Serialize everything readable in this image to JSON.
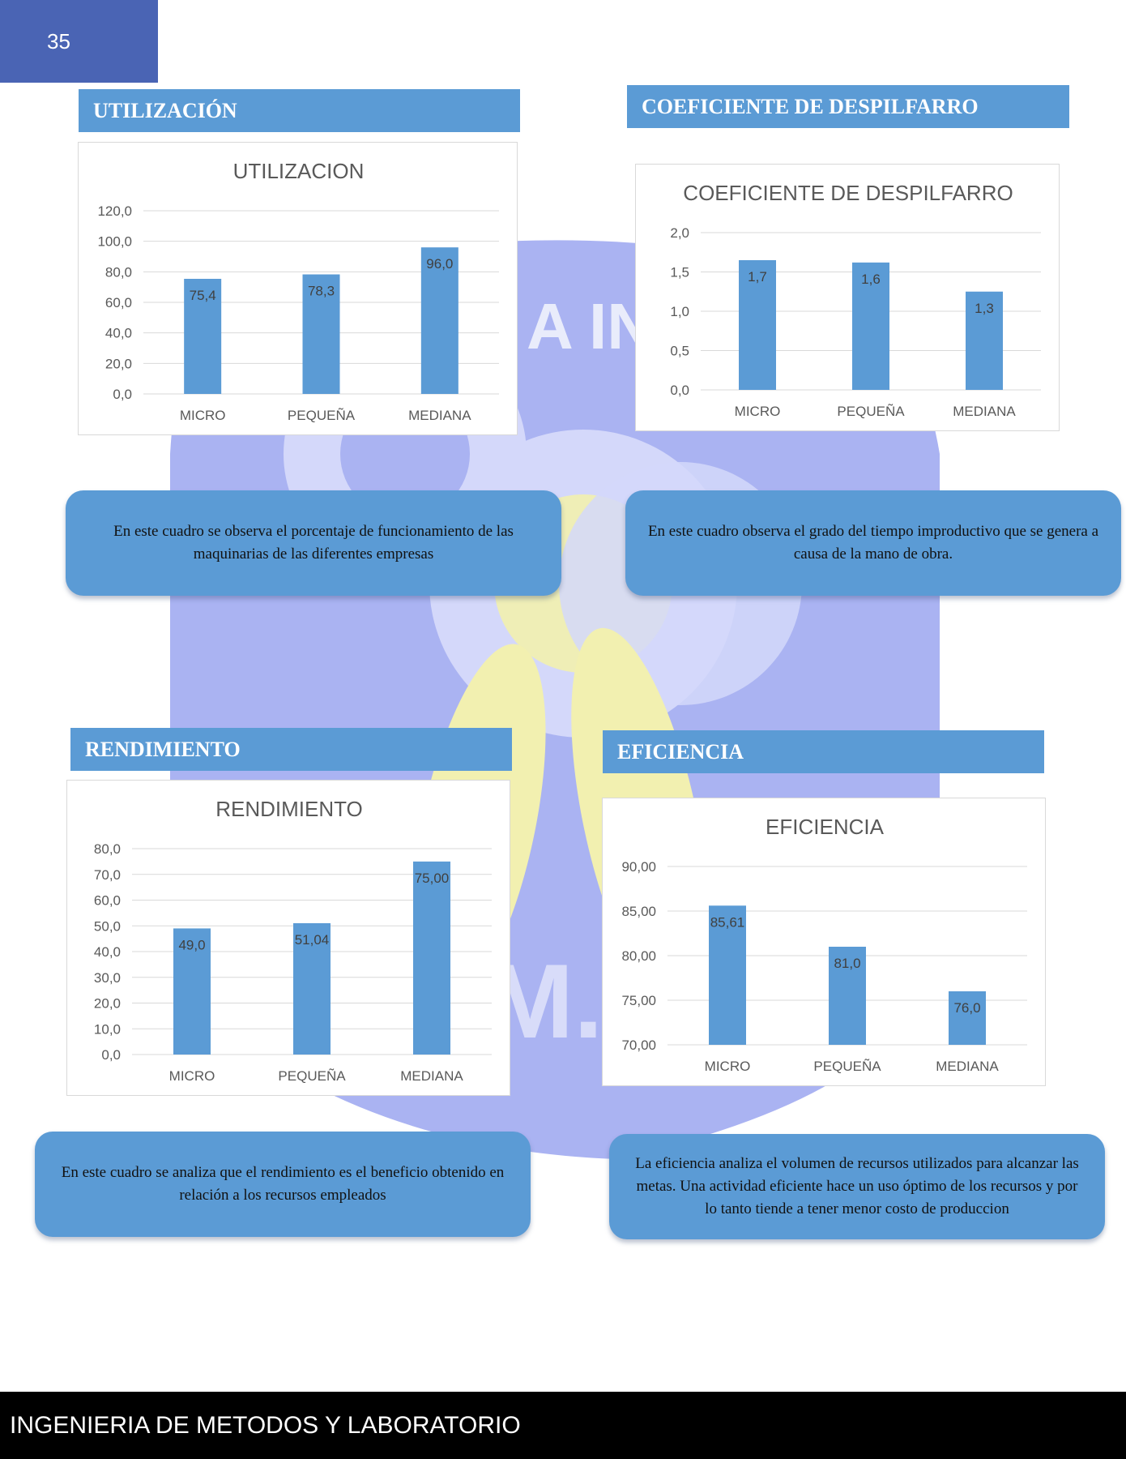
{
  "page_number": "35",
  "footer": {
    "text": "INGENIERIA DE METODOS Y LABORATORIO"
  },
  "watermark": {
    "text_fragment_1": "A IN",
    "text_fragment_2": "M.S"
  },
  "sections": {
    "utilizacion": {
      "header": "UTILIZACIÓN",
      "note": "En este cuadro se observa el porcentaje de funcionamiento de las maquinarias de las diferentes empresas"
    },
    "despilfarro": {
      "header": "COEFICIENTE DE DESPILFARRO",
      "note": "En este cuadro observa el grado del tiempo improductivo que se genera  a causa de la mano de obra."
    },
    "rendimiento": {
      "header": "RENDIMIENTO",
      "note": "En este cuadro se analiza que el rendimiento es el beneficio obtenido en relación a los recursos empleados"
    },
    "eficiencia": {
      "header": "EFICIENCIA",
      "note": "La eficiencia analiza el volumen de recursos utilizados para alcanzar las metas. Una actividad eficiente hace un uso óptimo de los recursos y por lo tanto tiende a tener menor costo de produccion"
    }
  },
  "colors": {
    "bar": "#5b9bd5",
    "header_bg": "#5b9bd5",
    "page_num_bg": "#4a64b4",
    "footer_bg": "#000000"
  },
  "chart_data": [
    {
      "id": "utilizacion",
      "type": "bar",
      "title": "UTILIZACION",
      "categories": [
        "MICRO",
        "PEQUEÑA",
        "MEDIANA"
      ],
      "values": [
        75.4,
        78.3,
        96.0
      ],
      "value_labels": [
        "75,4",
        "78,3",
        "96,0"
      ],
      "yticks": [
        "0,0",
        "20,0",
        "40,0",
        "60,0",
        "80,0",
        "100,0",
        "120,0"
      ],
      "ylim": [
        0,
        120
      ],
      "grid": true
    },
    {
      "id": "despilfarro",
      "type": "bar",
      "title": "COEFICIENTE DE DESPILFARRO",
      "categories": [
        "MICRO",
        "PEQUEÑA",
        "MEDIANA"
      ],
      "values": [
        1.65,
        1.62,
        1.25
      ],
      "value_labels": [
        "1,7",
        "1,6",
        "1,3"
      ],
      "yticks": [
        "0,0",
        "0,5",
        "1,0",
        "1,5",
        "2,0"
      ],
      "ylim": [
        0,
        2
      ],
      "grid": true
    },
    {
      "id": "rendimiento",
      "type": "bar",
      "title": "RENDIMIENTO",
      "categories": [
        "MICRO",
        "PEQUEÑA",
        "MEDIANA"
      ],
      "values": [
        49.0,
        51.04,
        75.0
      ],
      "value_labels": [
        "49,0",
        "51,04",
        "75,00"
      ],
      "yticks": [
        "0,0",
        "10,0",
        "20,0",
        "30,0",
        "40,0",
        "50,0",
        "60,0",
        "70,0",
        "80,0"
      ],
      "ylim": [
        0,
        80
      ],
      "grid": true
    },
    {
      "id": "eficiencia",
      "type": "bar",
      "title": "EFICIENCIA",
      "categories": [
        "MICRO",
        "PEQUEÑA",
        "MEDIANA"
      ],
      "values": [
        85.61,
        81.0,
        76.0
      ],
      "value_labels": [
        "85,61",
        "81,0",
        "76,0"
      ],
      "yticks": [
        "70,00",
        "75,00",
        "80,00",
        "85,00",
        "90,00"
      ],
      "ylim": [
        70,
        90
      ],
      "grid": true
    }
  ]
}
